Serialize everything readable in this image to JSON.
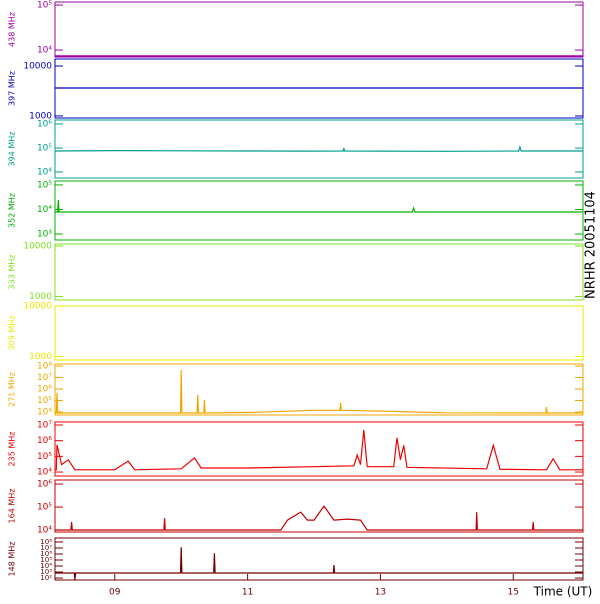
{
  "title": "NRHR 20051104",
  "chart_data": [
    {
      "type": "line",
      "ylabel": "438 MHz",
      "color": "#a000a0",
      "yscale": "log",
      "ylim": [
        7000,
        117000
      ],
      "yticks": [
        {
          "value": 100000,
          "label": "10⁵"
        },
        {
          "value": 10000,
          "label": "10⁴"
        }
      ],
      "x": [
        8.1,
        16.05
      ],
      "values": [
        7400,
        7400
      ]
    },
    {
      "type": "line",
      "ylabel": "397 MHz",
      "color": "#0000c0",
      "yscale": "log",
      "ylim": [
        910,
        13800
      ],
      "yticks": [
        10000,
        1000
      ],
      "x": [
        8.1,
        16.05
      ],
      "values": [
        3630,
        3630
      ]
    },
    {
      "type": "line",
      "ylabel": "394 MHz",
      "color": "#00a08c",
      "yscale": "log",
      "ylim": [
        5600,
        1470000
      ],
      "yticks": [
        {
          "value": 1000000,
          "label": "10⁶"
        },
        {
          "value": 100000,
          "label": "10⁵"
        },
        {
          "value": 10000,
          "label": "10⁴"
        }
      ],
      "x": [
        8.1,
        9.0,
        10.0,
        11.0,
        12.0,
        12.44,
        12.45,
        12.46,
        13.0,
        14.0,
        15.08,
        15.1,
        15.12,
        16.05
      ],
      "values": [
        75000,
        78000,
        76000,
        75000,
        74000,
        75000,
        100000,
        75000,
        74000,
        73000,
        75000,
        110000,
        75000,
        75000
      ]
    },
    {
      "type": "line",
      "ylabel": "352 MHz",
      "color": "#00b000",
      "yscale": "log",
      "ylim": [
        570,
        145000
      ],
      "yticks": [
        {
          "value": 100000,
          "label": "10⁵"
        },
        {
          "value": 10000,
          "label": "10⁴"
        },
        {
          "value": 1000,
          "label": "10³"
        }
      ],
      "x": [
        8.1,
        8.14,
        8.15,
        8.16,
        9.0,
        11.0,
        13.48,
        13.5,
        13.52,
        15.0,
        16.05
      ],
      "values": [
        7900,
        7900,
        24000,
        7900,
        7900,
        7900,
        7900,
        11500,
        7900,
        7900,
        7900
      ]
    },
    {
      "type": "line",
      "ylabel": "333 MHz",
      "color": "#80e020",
      "yscale": "log",
      "ylim": [
        850,
        11000
      ],
      "yticks": [
        10000,
        1000
      ]
    },
    {
      "type": "line",
      "ylabel": "309 MHz",
      "color": "#e8e800",
      "yscale": "log",
      "ylim": [
        850,
        10000
      ],
      "yticks": [
        10000,
        1000
      ]
    },
    {
      "type": "line",
      "ylabel": "271 MHz",
      "color": "#f0a800",
      "yscale": "log",
      "ylim": [
        5500,
        150000000
      ],
      "yticks": [
        {
          "value": 100000000,
          "label": "10⁸"
        },
        {
          "value": 10000000,
          "label": "10⁷"
        },
        {
          "value": 1000000,
          "label": "10⁶"
        },
        {
          "value": 100000,
          "label": "10⁵"
        },
        {
          "value": 10000,
          "label": "10⁴"
        }
      ],
      "x": [
        8.1,
        8.12,
        8.13,
        8.14,
        9.0,
        9.99,
        10.0,
        10.01,
        10.24,
        10.25,
        10.26,
        10.34,
        10.35,
        10.36,
        11.0,
        12.0,
        12.39,
        12.4,
        12.41,
        13.0,
        14.0,
        15.49,
        15.5,
        15.51,
        16.05
      ],
      "values": [
        8200,
        8200,
        450000,
        8200,
        8200,
        8200,
        45000000,
        8200,
        8200,
        300000,
        8200,
        8200,
        110000,
        8200,
        9000,
        14000,
        14000,
        60000,
        14000,
        12000,
        8500,
        8200,
        27000,
        8200,
        8200
      ]
    },
    {
      "type": "line",
      "ylabel": "235 MHz",
      "color": "#f00000",
      "yscale": "log",
      "ylim": [
        5600,
        15500000
      ],
      "yticks": [
        {
          "value": 10000000,
          "label": "10⁷"
        },
        {
          "value": 1000000,
          "label": "10⁶"
        },
        {
          "value": 100000,
          "label": "10⁵"
        },
        {
          "value": 10000,
          "label": "10⁴"
        }
      ],
      "x": [
        8.1,
        8.12,
        8.13,
        8.2,
        8.3,
        8.4,
        9.0,
        9.2,
        9.3,
        10.0,
        10.2,
        10.3,
        11.0,
        12.0,
        12.6,
        12.65,
        12.7,
        12.75,
        12.8,
        13.2,
        13.25,
        13.3,
        13.35,
        13.4,
        14.6,
        14.7,
        14.8,
        15.5,
        15.6,
        15.7,
        16.05
      ],
      "values": [
        14000,
        14000,
        540000,
        30000,
        60000,
        14000,
        14000,
        50000,
        14000,
        16000,
        80000,
        18000,
        18000,
        22000,
        25000,
        120000,
        30000,
        4800000,
        22000,
        22000,
        1500000,
        60000,
        500000,
        20000,
        16000,
        500000,
        15000,
        14000,
        70000,
        14000,
        14000
      ]
    },
    {
      "type": "line",
      "ylabel": "164 MHz",
      "color": "#c00000",
      "yscale": "log",
      "ylim": [
        8200,
        1500000
      ],
      "yticks": [
        {
          "value": 1000000,
          "label": "10⁶"
        },
        {
          "value": 100000,
          "label": "10⁵"
        },
        {
          "value": 10000,
          "label": "10⁴"
        }
      ],
      "x": [
        8.1,
        8.34,
        8.35,
        8.36,
        9.74,
        9.75,
        9.76,
        11.5,
        11.6,
        11.8,
        11.9,
        12.0,
        12.15,
        12.3,
        12.5,
        12.7,
        12.8,
        14.44,
        14.45,
        14.46,
        15.29,
        15.3,
        15.31,
        16.05
      ],
      "values": [
        10000,
        10000,
        22000,
        10000,
        10000,
        33000,
        10000,
        10000,
        27000,
        60000,
        27000,
        27000,
        110000,
        27000,
        30000,
        27000,
        10000,
        10000,
        60000,
        10000,
        10000,
        22000,
        10000,
        10000
      ]
    },
    {
      "type": "line",
      "ylabel": "148 MHz",
      "color": "#700000",
      "yscale": "log",
      "ylim": [
        47,
        460000000
      ],
      "yticks": [
        {
          "value": 100000000,
          "label": "10⁸"
        },
        {
          "value": 10000000,
          "label": "10⁷"
        },
        {
          "value": 1000000,
          "label": "10⁶"
        },
        {
          "value": 100000,
          "label": "10⁵"
        },
        {
          "value": 10000,
          "label": "10⁴"
        },
        {
          "value": 1000,
          "label": "10³"
        },
        {
          "value": 100,
          "label": "10²"
        }
      ],
      "x": [
        8.1,
        8.39,
        8.4,
        8.41,
        9.0,
        9.99,
        10.0,
        10.01,
        10.49,
        10.5,
        10.51,
        11.0,
        12.29,
        12.3,
        12.31,
        13.0,
        14.0,
        15.0,
        16.05
      ],
      "values": [
        680,
        680,
        47,
        680,
        680,
        680,
        13000000,
        680,
        680,
        1300000,
        680,
        680,
        680,
        15000,
        680,
        680,
        680,
        680,
        680
      ],
      "xlim": [
        8.1,
        16.05
      ],
      "xlabel": "Time (UT)",
      "xticks": [
        {
          "value": 9,
          "label": "09"
        },
        {
          "value": 11,
          "label": "11"
        },
        {
          "value": 13,
          "label": "13"
        },
        {
          "value": 15,
          "label": "15"
        }
      ]
    }
  ]
}
